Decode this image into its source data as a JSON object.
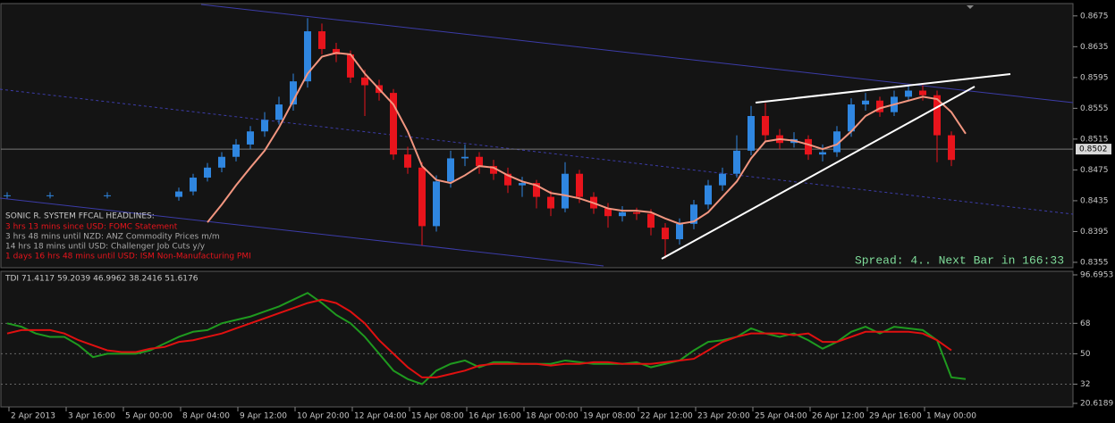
{
  "chart_data": [
    {
      "type": "candlestick",
      "categories": [
        null,
        "2 Apr 2013",
        null,
        null,
        null,
        "3 Apr 16:00",
        null,
        null,
        null,
        "5 Apr 00:00",
        null,
        null,
        null,
        "8 Apr 04:00",
        null,
        null,
        null,
        "9 Apr 12:00",
        null,
        null,
        null,
        "10 Apr 20:00",
        null,
        null,
        null,
        "12 Apr 04:00",
        null,
        null,
        null,
        "15 Apr 08:00",
        null,
        null,
        null,
        "16 Apr 16:00",
        null,
        null,
        null,
        "18 Apr 00:00",
        null,
        null,
        null,
        "19 Apr 08:00",
        null,
        null,
        null,
        "22 Apr 12:00",
        null,
        null,
        null,
        "23 Apr 20:00",
        null,
        null,
        null,
        "25 Apr 04:00",
        null,
        null,
        null,
        "26 Apr 12:00",
        null,
        null,
        null,
        "29 Apr 16:00",
        null,
        null,
        null,
        "1 May 00:00",
        null,
        null,
        null,
        null,
        null,
        null,
        null,
        null,
        null
      ],
      "open": [
        0.8442,
        null,
        null,
        0.8442,
        null,
        null,
        null,
        0.8442,
        null,
        null,
        null,
        null,
        0.844,
        0.8447,
        0.8465,
        0.8478,
        0.8492,
        0.8508,
        0.8525,
        0.854,
        0.856,
        0.859,
        0.8655,
        0.8632,
        0.8625,
        0.8595,
        0.8585,
        0.8575,
        0.8495,
        0.8478,
        0.8402,
        0.846,
        0.849,
        0.8492,
        0.848,
        0.847,
        0.8455,
        0.8458,
        0.844,
        0.8425,
        0.847,
        0.844,
        0.8425,
        0.8415,
        0.842,
        0.8418,
        0.84,
        0.8385,
        0.8405,
        0.843,
        0.8455,
        0.847,
        0.85,
        0.8545,
        0.852,
        0.851,
        0.8515,
        0.8495,
        0.8498,
        0.8525,
        0.856,
        0.8565,
        0.855,
        0.857,
        0.8578,
        0.8572,
        0.852,
        null,
        null,
        null,
        null,
        null,
        null,
        null,
        null
      ],
      "high": [
        0.8446,
        null,
        null,
        0.8446,
        null,
        null,
        null,
        0.8446,
        null,
        null,
        null,
        null,
        0.8452,
        0.847,
        0.8484,
        0.8498,
        0.8515,
        0.8532,
        0.855,
        0.857,
        0.86,
        0.8672,
        0.8665,
        0.864,
        0.863,
        0.8605,
        0.8592,
        0.858,
        0.8505,
        0.8485,
        0.8468,
        0.85,
        0.8508,
        0.8498,
        0.8488,
        0.8478,
        0.8466,
        0.8462,
        0.8448,
        0.8485,
        0.8475,
        0.8446,
        0.8432,
        0.8428,
        0.8426,
        0.8424,
        0.8406,
        0.8412,
        0.8436,
        0.8462,
        0.8478,
        0.852,
        0.8558,
        0.8562,
        0.8528,
        0.8524,
        0.852,
        0.8508,
        0.8532,
        0.8568,
        0.8575,
        0.857,
        0.8578,
        0.8584,
        0.8585,
        0.8578,
        0.8525,
        null,
        null,
        null,
        null,
        null,
        null,
        null,
        null
      ],
      "low": [
        0.8438,
        null,
        null,
        0.8438,
        null,
        null,
        null,
        0.8438,
        null,
        null,
        null,
        null,
        0.8435,
        0.8442,
        0.846,
        0.8472,
        0.8486,
        0.8502,
        0.8518,
        0.8534,
        0.8552,
        0.8582,
        0.8625,
        0.8615,
        0.8588,
        0.8545,
        0.8565,
        0.8488,
        0.847,
        0.8377,
        0.8395,
        0.8452,
        0.848,
        0.847,
        0.8462,
        0.8445,
        0.844,
        0.8425,
        0.8415,
        0.842,
        0.8432,
        0.8418,
        0.84,
        0.8408,
        0.841,
        0.839,
        0.836,
        0.8378,
        0.8398,
        0.8424,
        0.8448,
        0.8465,
        0.8494,
        0.8512,
        0.8502,
        0.8504,
        0.8488,
        0.8486,
        0.8492,
        0.8518,
        0.8552,
        0.8544,
        0.8545,
        0.8565,
        0.8565,
        0.8485,
        0.848,
        null,
        null,
        null,
        null,
        null,
        null,
        null,
        null
      ],
      "close": [
        0.8442,
        null,
        null,
        0.8442,
        null,
        null,
        null,
        0.8442,
        null,
        null,
        null,
        null,
        0.8447,
        0.8465,
        0.8478,
        0.8492,
        0.8508,
        0.8525,
        0.854,
        0.856,
        0.859,
        0.8655,
        0.8632,
        0.8625,
        0.8595,
        0.8585,
        0.8575,
        0.8495,
        0.8478,
        0.8402,
        0.846,
        0.849,
        0.8492,
        0.848,
        0.847,
        0.8455,
        0.8458,
        0.844,
        0.8425,
        0.847,
        0.844,
        0.8425,
        0.8415,
        0.842,
        0.8418,
        0.84,
        0.8385,
        0.8405,
        0.843,
        0.8455,
        0.847,
        0.85,
        0.8545,
        0.852,
        0.851,
        0.8515,
        0.8495,
        0.8498,
        0.8525,
        0.856,
        0.8565,
        0.855,
        0.857,
        0.8578,
        0.8572,
        0.852,
        0.8488,
        null,
        null,
        null,
        null,
        null,
        null,
        null,
        null
      ],
      "up_color": "#2f86e0",
      "down_color": "#e8141c",
      "series": [
        {
          "color": "#f29680",
          "values": [
            null,
            null,
            null,
            null,
            null,
            null,
            null,
            null,
            null,
            null,
            null,
            null,
            null,
            null,
            0.8407,
            0.843,
            0.8455,
            0.8478,
            0.85,
            0.853,
            0.8565,
            0.86,
            0.8622,
            0.8627,
            0.8625,
            0.86,
            0.858,
            0.856,
            0.8525,
            0.848,
            0.8462,
            0.8458,
            0.8468,
            0.848,
            0.8478,
            0.8468,
            0.846,
            0.8455,
            0.8445,
            0.8442,
            0.8438,
            0.8432,
            0.8425,
            0.8422,
            0.8422,
            0.842,
            0.8412,
            0.8405,
            0.8408,
            0.842,
            0.844,
            0.846,
            0.849,
            0.8512,
            0.8515,
            0.8513,
            0.8508,
            0.8502,
            0.8508,
            0.8525,
            0.8545,
            0.8555,
            0.856,
            0.8565,
            0.857,
            0.8567,
            0.855,
            0.8522,
            null,
            null,
            null,
            null,
            null,
            null,
            null
          ]
        }
      ],
      "ylim": [
        0.8348,
        0.8691
      ],
      "yticks": [
        0.8675,
        0.8635,
        0.8595,
        0.8555,
        0.8515,
        0.8475,
        0.8435,
        0.8395,
        0.8355
      ],
      "last_price": 0.8502,
      "headline_title": "SONIC R. SYSTEM  FFCAL HEADLINES:",
      "headlines": [
        {
          "text": "3 hrs 13 mins since USD: FOMC Statement",
          "color": "#e8141c"
        },
        {
          "text": "3 hrs 48 mins until NZD: ANZ Commodity Prices m/m",
          "color": "#a8a8a8"
        },
        {
          "text": "14 hrs 18 mins until USD: Challenger Job Cuts y/y",
          "color": "#a8a8a8"
        },
        {
          "text": "1 days 16 hrs 48 mins until USD: ISM Non-Manufacturing PMI",
          "color": "#e8141c"
        }
      ],
      "spread_text": "Spread: 4.. Next Bar in 166:33"
    },
    {
      "type": "line",
      "title": "TDI 71.4117 59.2039 46.9962 38.2416 51.6176",
      "series": [
        {
          "color": "#1f9a1f",
          "values": [
            68,
            66,
            62,
            60,
            60,
            55,
            48,
            50,
            50,
            50,
            52,
            56,
            60,
            63,
            64,
            68,
            70,
            72,
            75,
            78,
            82,
            86,
            80,
            73,
            68,
            60,
            50,
            40,
            35,
            32,
            40,
            44,
            46,
            42,
            45,
            45,
            44,
            44,
            44,
            46,
            45,
            44,
            44,
            44,
            45,
            42,
            44,
            46,
            52,
            57,
            58,
            60,
            65,
            62,
            60,
            62,
            58,
            53,
            57,
            63,
            66,
            62,
            66,
            65,
            64,
            58,
            36,
            35,
            null,
            null,
            null,
            null,
            null,
            null,
            null
          ]
        },
        {
          "color": "#e01010",
          "values": [
            62,
            64,
            64,
            64,
            62,
            58,
            55,
            52,
            51,
            51,
            53,
            54,
            57,
            58,
            60,
            62,
            65,
            68,
            71,
            74,
            77,
            80,
            82,
            80,
            75,
            68,
            58,
            50,
            42,
            36,
            36,
            38,
            40,
            43,
            44,
            44,
            44,
            44,
            43,
            44,
            44,
            45,
            45,
            44,
            44,
            44,
            45,
            46,
            47,
            52,
            57,
            60,
            62,
            62,
            62,
            61,
            62,
            57,
            57,
            60,
            63,
            63,
            63,
            63,
            62,
            58,
            52,
            null,
            null,
            null,
            null,
            null,
            null,
            null,
            null
          ]
        }
      ],
      "ylim": [
        20.6189,
        96.6953
      ],
      "yticks": [
        96.6953,
        68,
        50,
        32,
        20.6189
      ],
      "grid": true
    }
  ]
}
